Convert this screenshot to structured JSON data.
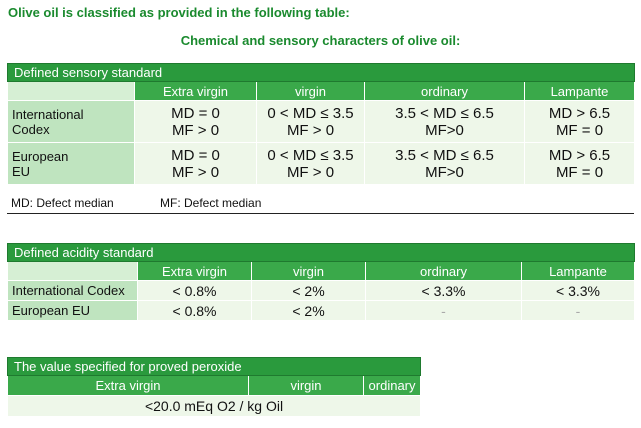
{
  "intro": "Olive oil is classified as provided in the following table:",
  "caption": "Chemical and sensory characters of olive oil:",
  "sensory": {
    "title": "Defined sensory standard",
    "columns": [
      "Extra virgin",
      "virgin",
      "ordinary",
      "Lampante"
    ],
    "rows": [
      {
        "label_line1": "International",
        "label_line2": "Codex",
        "cells": [
          [
            "MD = 0",
            "MF > 0"
          ],
          [
            "0 < MD ≤ 3.5",
            "MF > 0"
          ],
          [
            "3.5 < MD ≤ 6.5",
            "MF>0"
          ],
          [
            "MD > 6.5",
            "MF = 0"
          ]
        ]
      },
      {
        "label_line1": "European",
        "label_line2": "EU",
        "cells": [
          [
            "MD = 0",
            "MF > 0"
          ],
          [
            "0 < MD ≤ 3.5",
            "MF > 0"
          ],
          [
            "3.5 < MD ≤ 6.5",
            "MF>0"
          ],
          [
            "MD > 6.5",
            "MF = 0"
          ]
        ]
      }
    ],
    "note_md": "MD: Defect median",
    "note_mf": "MF: Defect median"
  },
  "acidity": {
    "title": "Defined acidity standard",
    "columns": [
      "Extra virgin",
      "virgin",
      "ordinary",
      "Lampante"
    ],
    "rows": [
      {
        "label": "International Codex",
        "cells": [
          "< 0.8%",
          "< 2%",
          "< 3.3%",
          "< 3.3%"
        ]
      },
      {
        "label": "European EU",
        "cells": [
          "< 0.8%",
          "< 2%",
          "-",
          "-"
        ]
      }
    ]
  },
  "peroxide": {
    "title": "The value specified for proved peroxide",
    "columns": [
      "Extra virgin",
      "virgin",
      "ordinary"
    ],
    "value": "<20.0 mEq O2 / kg Oil"
  },
  "colors": {
    "title_bar": "#2a9a3d",
    "header": "#3aa94a",
    "label_cell": "#bfe4bf",
    "value_cell": "#eef7e9",
    "heading_text": "#1a8a2e"
  }
}
